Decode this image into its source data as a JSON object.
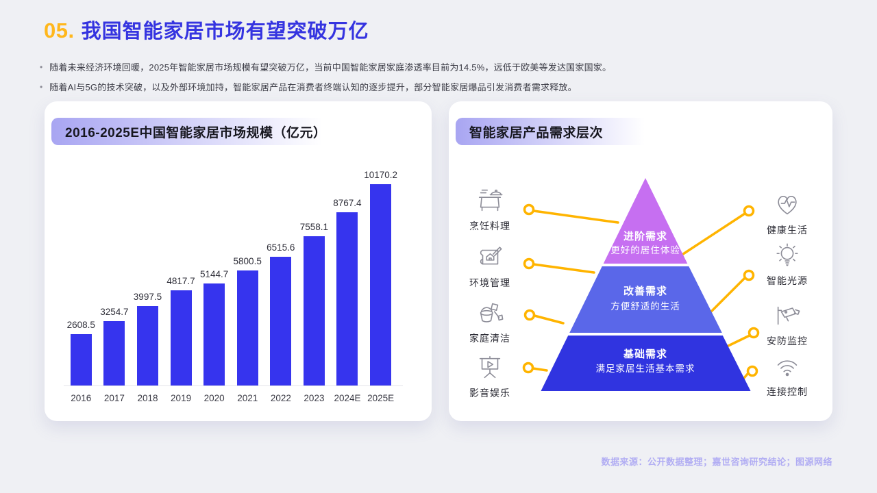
{
  "page": {
    "title_number": "05.",
    "title": "我国智能家居市场有望突破万亿",
    "bullets": [
      "随着未来经济环境回暖，2025年智能家居市场规模有望突破万亿，当前中国智能家居家庭渗透率目前为14.5%，远低于欧美等发达国家国家。",
      "随着AI与5G的技术突破，以及外部环境加持，智能家居产品在消费者终端认知的逐步提升，部分智能家居爆品引发消费者需求释放。"
    ],
    "footer": "数据来源：公开数据整理；嘉世咨询研究结论；图源网络"
  },
  "chart_data": {
    "type": "bar",
    "title": "2016-2025E中国智能家居市场规模（亿元）",
    "categories": [
      "2016",
      "2017",
      "2018",
      "2019",
      "2020",
      "2021",
      "2022",
      "2023",
      "2024E",
      "2025E"
    ],
    "values": [
      2608.5,
      3254.7,
      3997.5,
      4817.7,
      5144.7,
      5800.5,
      6515.6,
      7558.1,
      8767.4,
      10170.2
    ],
    "xlabel": "",
    "ylabel": "亿元",
    "ylim": [
      0,
      10500
    ],
    "grid": false,
    "legend": "none",
    "value_labels": true,
    "bar_color": "#3634EE"
  },
  "left_card": {
    "header": "2016-2025E中国智能家居市场规模（亿元）"
  },
  "right_card": {
    "header": "智能家居产品需求层次",
    "pyramid": {
      "tiers": [
        {
          "title": "进阶需求",
          "subtitle": "更好的居住体验",
          "color": "#C66FF1"
        },
        {
          "title": "改善需求",
          "subtitle": "方便舒适的生活",
          "color": "#5A67E9"
        },
        {
          "title": "基础需求",
          "subtitle": "满足家居生活基本需求",
          "color": "#3034E0"
        }
      ]
    },
    "left_items": [
      {
        "label": "烹饪料理",
        "icon": "cooking-icon"
      },
      {
        "label": "环境管理",
        "icon": "environment-icon"
      },
      {
        "label": "家庭清洁",
        "icon": "cleaning-icon"
      },
      {
        "label": "影音娱乐",
        "icon": "entertainment-icon"
      }
    ],
    "right_items": [
      {
        "label": "健康生活",
        "icon": "health-icon"
      },
      {
        "label": "智能光源",
        "icon": "light-icon"
      },
      {
        "label": "安防监控",
        "icon": "security-icon"
      },
      {
        "label": "连接控制",
        "icon": "wifi-icon"
      }
    ],
    "connector_color": "#FFB400"
  },
  "colors": {
    "page_background": "#EFF0F4",
    "card_background": "#FFFFFF",
    "title_number": "#FFB71C",
    "title_text": "#3534E0",
    "badge_gradient_start": "#A8A5F2",
    "bar": "#3634EE",
    "connector": "#FFB400",
    "footer_text": "#B1ADF3"
  }
}
